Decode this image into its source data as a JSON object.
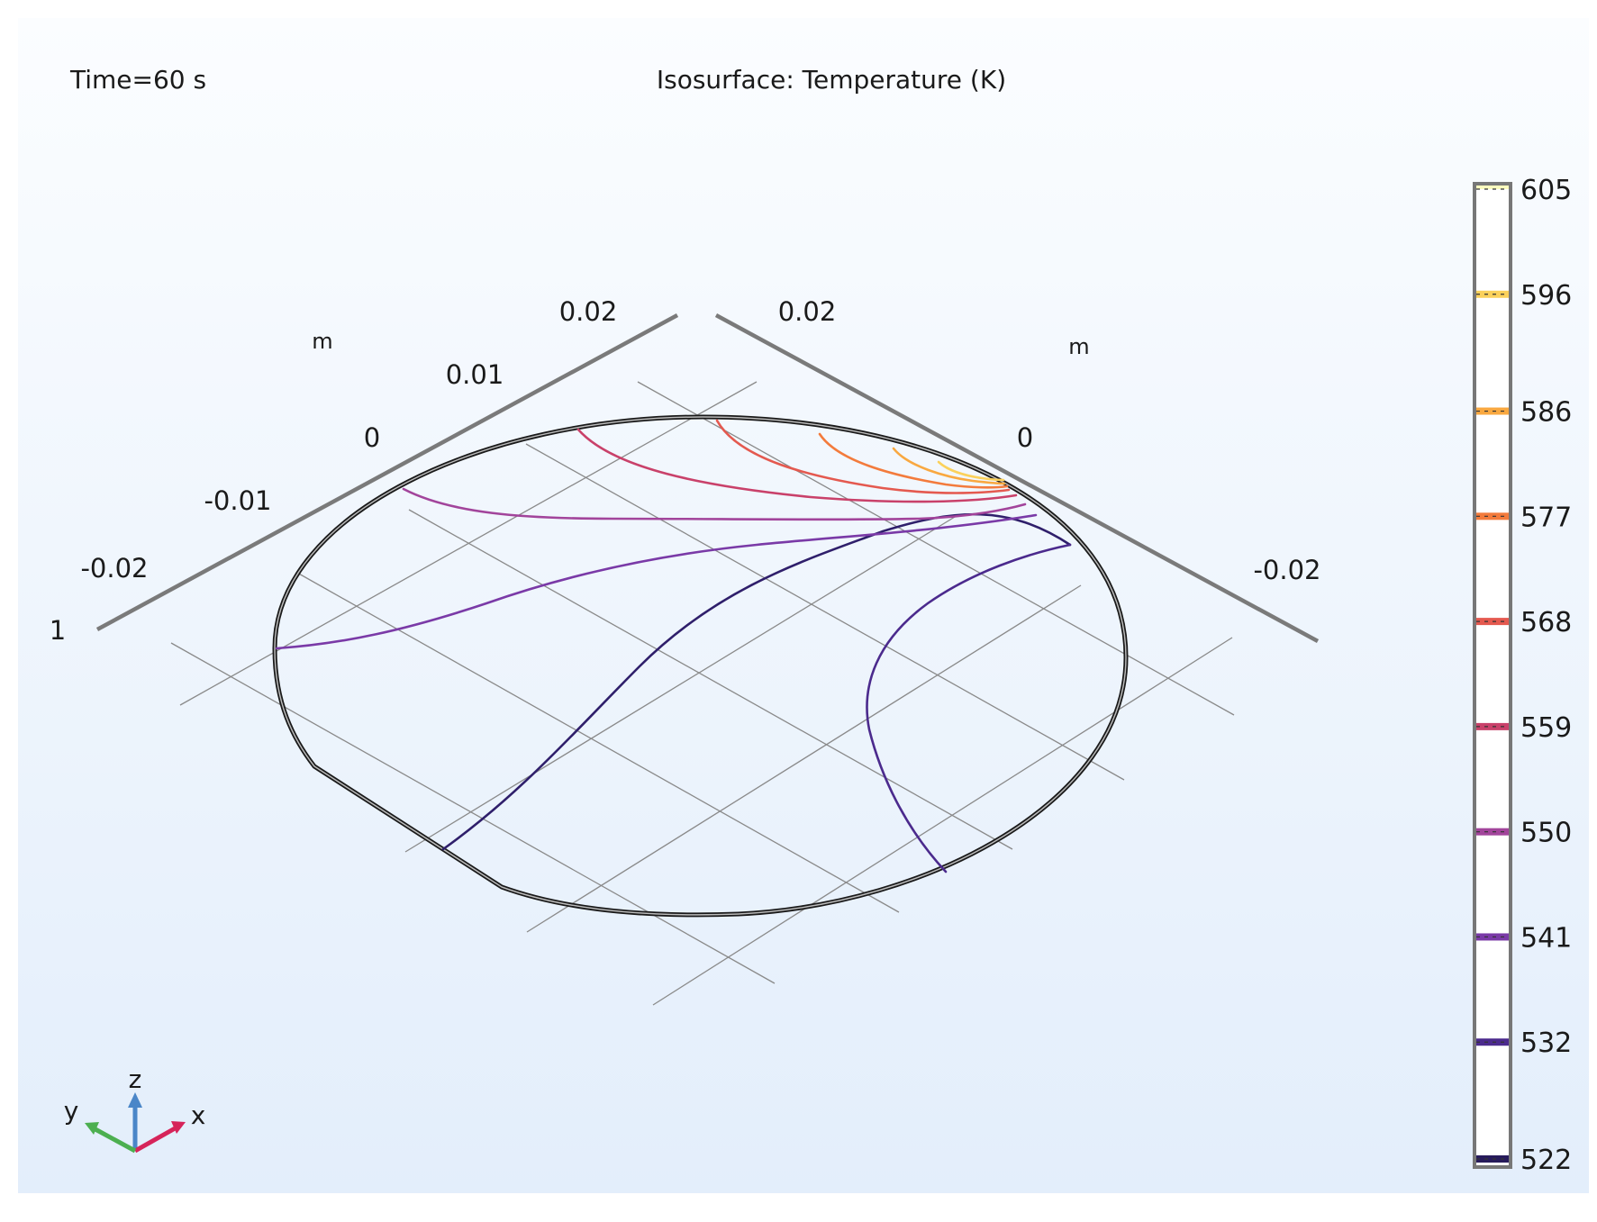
{
  "header": {
    "time_label": "Time=60 s",
    "title": "Isosurface: Temperature (K)"
  },
  "chart_data": {
    "type": "contour",
    "title": "Isosurface: Temperature (K)",
    "time": "Time=60 s",
    "variable": "Temperature",
    "unit": "K",
    "axes": {
      "left_axis": {
        "unit": "m",
        "ticks": [
          "0.02",
          "0.01",
          "0",
          "-0.01",
          "-0.02"
        ],
        "extra_label": "1"
      },
      "right_axis": {
        "unit": "m",
        "ticks": [
          "0.02",
          "0",
          "-0.02"
        ]
      }
    },
    "colorbar": {
      "levels": [
        605,
        596,
        586,
        577,
        568,
        559,
        550,
        541,
        532,
        522
      ],
      "colors": [
        "#fcfdbf",
        "#fbd15b",
        "#f9a840",
        "#f37b3c",
        "#e4594f",
        "#c9416a",
        "#a2449b",
        "#7a3aa7",
        "#4b2a8d",
        "#271b5b"
      ]
    },
    "contour_levels_shown": [
      596,
      586,
      577,
      568,
      559,
      550,
      541,
      532,
      522
    ],
    "grid": true
  },
  "axis_triad": {
    "x_label": "x",
    "y_label": "y",
    "z_label": "z",
    "x_color": "#d6245a",
    "y_color": "#4caf50",
    "z_color": "#4a86c8"
  },
  "colors": {
    "outline": "#1a1a1a",
    "axis_line": "#7a7a7a",
    "grid_line": "#8a8a8a"
  }
}
